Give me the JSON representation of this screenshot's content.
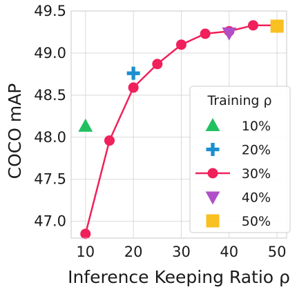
{
  "chart_data": {
    "type": "line",
    "xlabel": "Inference Keeping Ratio ρ",
    "ylabel": "COCO mAP",
    "xlim": [
      7,
      52
    ],
    "ylim": [
      46.8,
      49.5
    ],
    "xticks": [
      10,
      20,
      30,
      40,
      50
    ],
    "yticks": [
      47.0,
      47.5,
      48.0,
      48.5,
      49.0,
      49.5
    ],
    "xtick_labels": [
      "10",
      "20",
      "30",
      "40",
      "50"
    ],
    "ytick_labels": [
      "47.0",
      "47.5",
      "48.0",
      "48.5",
      "49.0",
      "49.5"
    ],
    "grid": true,
    "legend": {
      "title": "Training ρ",
      "placement": "lower-right"
    },
    "series": [
      {
        "name": "10%",
        "marker": "triangle-up",
        "color": "#20c060",
        "style": "marker",
        "x": [
          10
        ],
        "y": [
          48.13
        ]
      },
      {
        "name": "20%",
        "marker": "plus",
        "color": "#1a8fd0",
        "style": "marker",
        "x": [
          20
        ],
        "y": [
          48.76
        ]
      },
      {
        "name": "30%",
        "marker": "circle",
        "color": "#f0205a",
        "style": "line-marker",
        "x": [
          10,
          15,
          20,
          25,
          30,
          35,
          40,
          45,
          50
        ],
        "y": [
          46.85,
          47.96,
          48.59,
          48.87,
          49.1,
          49.23,
          49.26,
          49.33,
          49.33
        ]
      },
      {
        "name": "40%",
        "marker": "triangle-down",
        "color": "#b050c8",
        "style": "marker",
        "x": [
          40
        ],
        "y": [
          49.24
        ]
      },
      {
        "name": "50%",
        "marker": "square",
        "color": "#f8c020",
        "style": "marker",
        "x": [
          50
        ],
        "y": [
          49.32
        ]
      }
    ]
  }
}
